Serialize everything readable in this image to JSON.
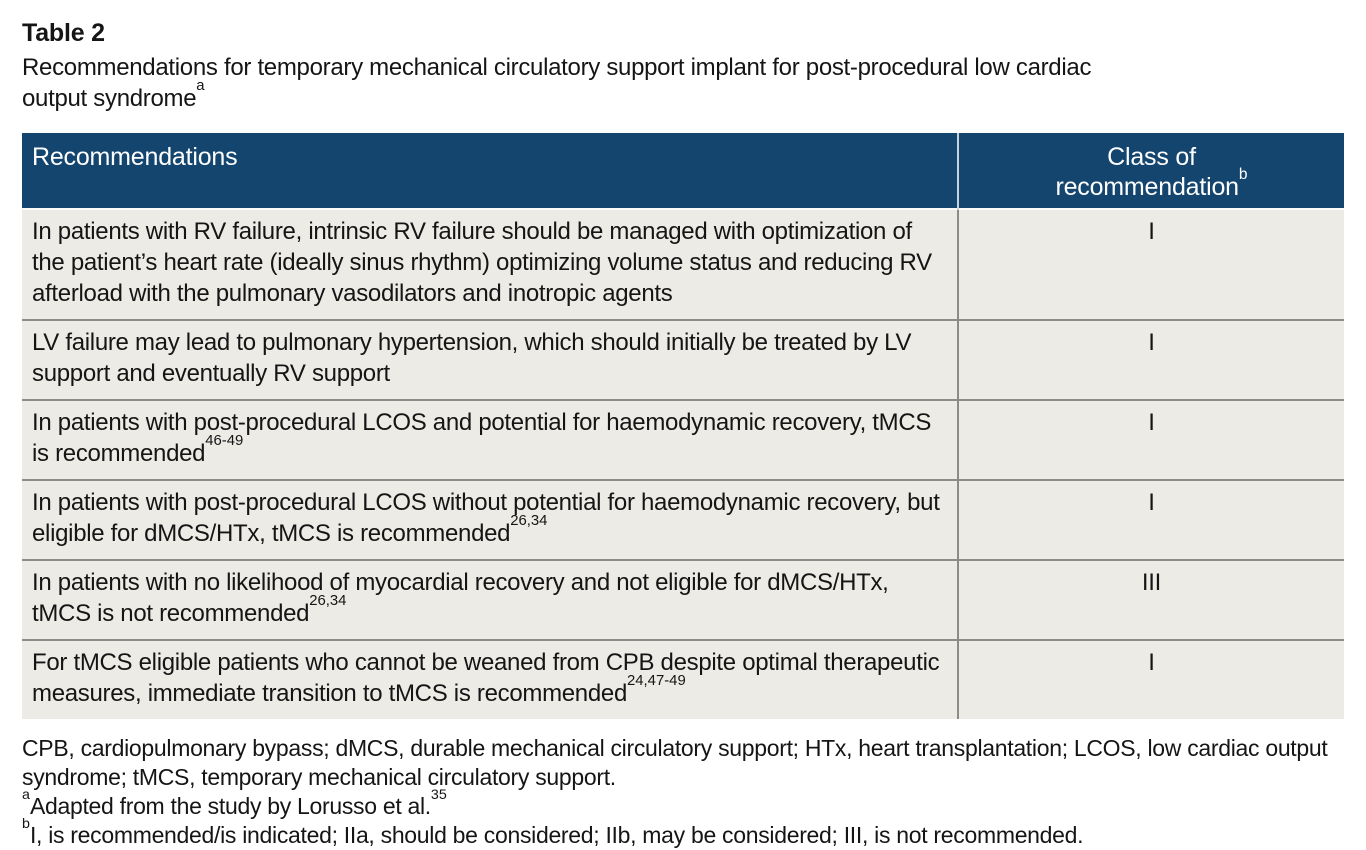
{
  "caption": {
    "label": "Table 2",
    "text": "Recommendations for temporary mechanical circulatory support implant for post-procedural low cardiac output syndrome",
    "sup": "a"
  },
  "table": {
    "header": {
      "recommendations_label": "Recommendations",
      "class_line1": "Class of",
      "class_line2": "recommendation",
      "class_sup": "b"
    },
    "rows": [
      {
        "text": "In patients with RV failure, intrinsic RV failure should be managed with optimization of the patient’s heart rate (ideally sinus rhythm) optimizing volume status and reducing RV afterload with the pulmonary vasodilators and inotropic agents",
        "sup": "",
        "class": "I"
      },
      {
        "text": "LV failure may lead to pulmonary hypertension, which should initially be treated by LV support and eventually RV support",
        "sup": "",
        "class": "I"
      },
      {
        "text": "In patients with post-procedural LCOS and potential for haemodynamic recovery, tMCS is recommended",
        "sup": "46-49",
        "class": "I"
      },
      {
        "text": "In patients with post-procedural LCOS without potential for haemodynamic recovery, but eligible for dMCS/HTx, tMCS is recommended",
        "sup": "26,34",
        "class": "I"
      },
      {
        "text": "In patients with no likelihood of myocardial recovery and not eligible for dMCS/HTx, tMCS is not recommended",
        "sup": "26,34",
        "class": "III"
      },
      {
        "text": "For tMCS eligible patients who cannot be weaned from CPB despite optimal therapeutic measures, immediate transition to tMCS is recommended",
        "sup": "24,47-49",
        "class": "I"
      }
    ]
  },
  "footnotes": {
    "abbreviations": "CPB, cardiopulmonary bypass; dMCS, durable mechanical circulatory support; HTx, heart transplantation; LCOS, low cardiac output syndrome; tMCS, temporary mechanical circulatory support.",
    "note_a": {
      "sup": "a",
      "text": "Adapted from the study by Lorusso et al.",
      "trail_sup": "35"
    },
    "note_b": {
      "sup": "b",
      "text": "I, is recommended/is indicated; IIa, should be considered; IIb, may be considered; III, is not recommended."
    }
  },
  "colors": {
    "header_bg": "#14456e",
    "header_text": "#ffffff",
    "row_bg": "#edebe6",
    "divider_gray": "#8e8c88",
    "body_text": "#151515"
  }
}
